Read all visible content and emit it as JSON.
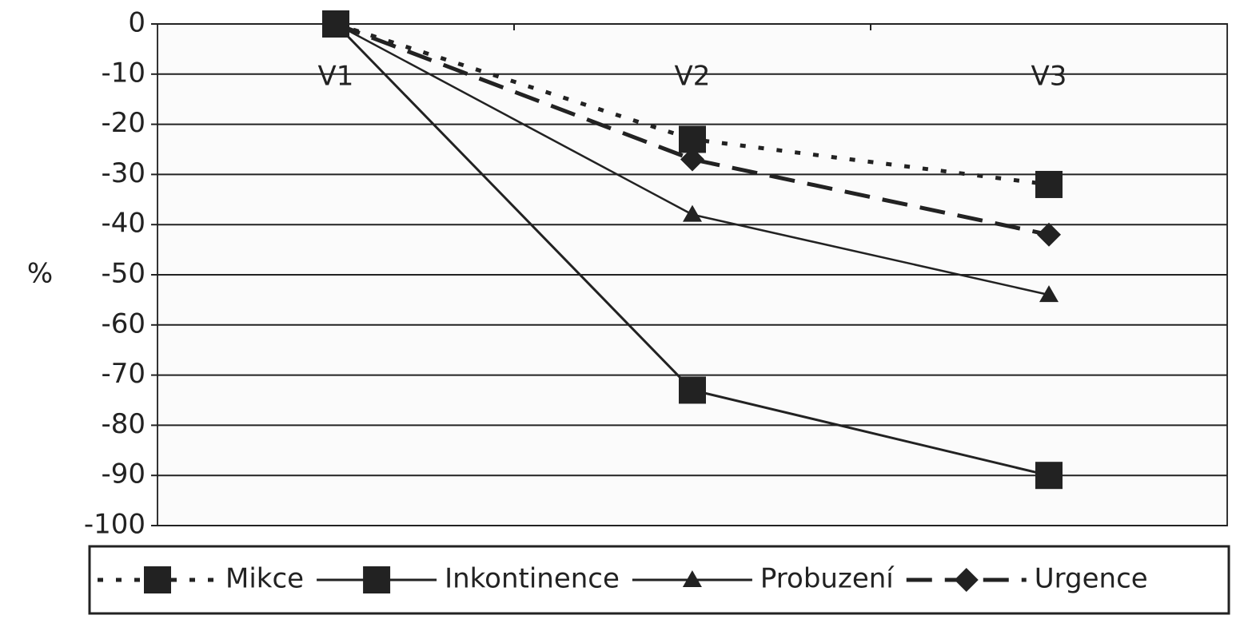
{
  "chart_data": {
    "type": "line",
    "categories": [
      "V1",
      "V2",
      "V3"
    ],
    "ylabel": "%",
    "ylim": [
      -100,
      0
    ],
    "yticks": [
      0,
      -10,
      -20,
      -30,
      -40,
      -50,
      -60,
      -70,
      -80,
      -90,
      -100
    ],
    "grid": true,
    "legend_position": "bottom",
    "series": [
      {
        "name": "Mikce",
        "color": "#222222",
        "line_style": "dotted",
        "marker": "square",
        "values": [
          0,
          -23,
          -32
        ]
      },
      {
        "name": "Inkontinence",
        "color": "#222222",
        "line_style": "solid",
        "marker": "square",
        "values": [
          0,
          -73,
          -90
        ]
      },
      {
        "name": "Probuzení",
        "color": "#222222",
        "line_style": "solid",
        "marker": "triangle",
        "values": [
          0,
          -38,
          -54
        ]
      },
      {
        "name": "Urgence",
        "color": "#222222",
        "line_style": "dashed",
        "marker": "diamond",
        "values": [
          0,
          -27,
          -42
        ]
      }
    ]
  }
}
